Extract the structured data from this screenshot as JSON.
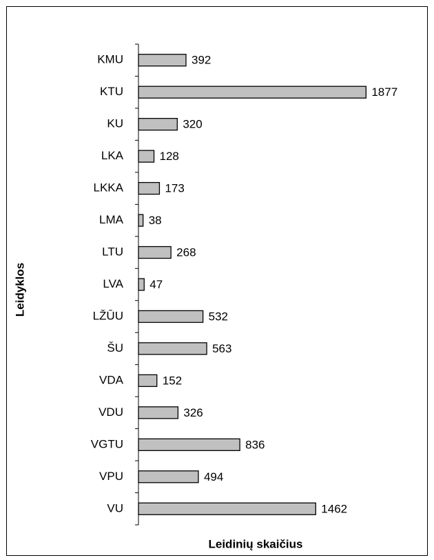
{
  "chart_data": {
    "type": "bar",
    "orientation": "horizontal",
    "x_label": "Leidinių skaičius",
    "y_label": "Leidyklos",
    "categories": [
      "KMU",
      "KTU",
      "KU",
      "LKA",
      "LKKA",
      "LMA",
      "LTU",
      "LVA",
      "LŽŪU",
      "ŠU",
      "VDA",
      "VDU",
      "VGTU",
      "VPU",
      "VU"
    ],
    "values": [
      392,
      1877,
      320,
      128,
      173,
      38,
      268,
      47,
      532,
      563,
      152,
      326,
      836,
      494,
      1462
    ],
    "color": "#c0c0c0",
    "xlim": [
      0,
      2000
    ]
  }
}
